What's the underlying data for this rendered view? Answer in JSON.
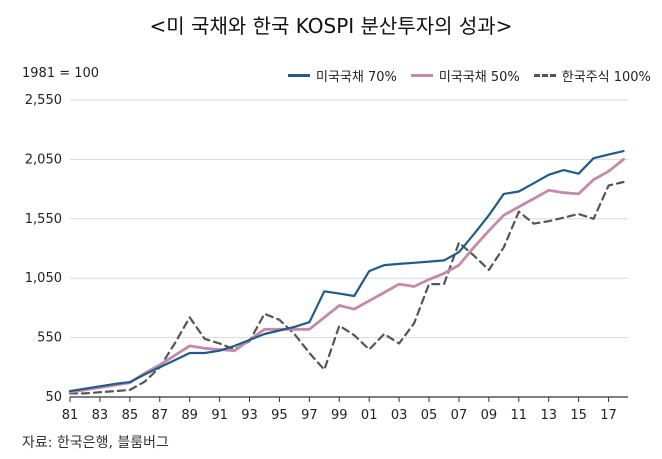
{
  "title": "<미 국채와 한국 KOSPI 분산투자의 성과>",
  "unit_note": "1981 = 100",
  "source": "자료: 한국은행, 블룸버그",
  "colors": {
    "us_70": "#1f5c8b",
    "us_50": "#c48aa8",
    "kr_100": "#555555",
    "axis": "#333333"
  },
  "chart_data": {
    "type": "line",
    "title": "<미 국채와 한국 KOSPI 분산투자의 성과>",
    "xlabel": "",
    "ylabel": "",
    "ylim": [
      50,
      2550
    ],
    "yticks": [
      50,
      550,
      1050,
      1550,
      2050,
      2550
    ],
    "ytick_labels": [
      "50",
      "550",
      "1,050",
      "1,550",
      "2,050",
      "2,550"
    ],
    "xticks": [
      "81",
      "83",
      "85",
      "87",
      "89",
      "91",
      "93",
      "95",
      "97",
      "99",
      "01",
      "03",
      "05",
      "07",
      "09",
      "11",
      "13",
      "15",
      "17"
    ],
    "grid": "horizontal",
    "legend": "top-right",
    "x": [
      1981,
      1982,
      1983,
      1984,
      1985,
      1986,
      1987,
      1988,
      1989,
      1990,
      1991,
      1992,
      1993,
      1994,
      1995,
      1996,
      1997,
      1998,
      1999,
      2000,
      2001,
      2002,
      2003,
      2004,
      2005,
      2006,
      2007,
      2008,
      2009,
      2010,
      2011,
      2012,
      2013,
      2014,
      2015,
      2016,
      2017,
      2018
    ],
    "series": [
      {
        "name": "미국국채 70%",
        "style": "solid",
        "values": [
          100,
          120,
          140,
          160,
          175,
          240,
          300,
          360,
          420,
          420,
          440,
          480,
          530,
          580,
          610,
          640,
          680,
          940,
          920,
          900,
          1110,
          1160,
          1170,
          1180,
          1190,
          1200,
          1270,
          1420,
          1580,
          1760,
          1780,
          1850,
          1920,
          1960,
          1930,
          2060,
          2090,
          2120
        ]
      },
      {
        "name": "미국국채 50%",
        "style": "solid",
        "values": [
          90,
          110,
          130,
          150,
          170,
          250,
          320,
          400,
          480,
          460,
          450,
          440,
          530,
          620,
          620,
          620,
          620,
          720,
          820,
          790,
          860,
          930,
          1000,
          980,
          1040,
          1090,
          1160,
          1310,
          1450,
          1580,
          1650,
          1720,
          1790,
          1770,
          1760,
          1880,
          1950,
          2050
        ]
      },
      {
        "name": "한국주식 100%",
        "style": "dashed",
        "values": [
          80,
          80,
          90,
          100,
          110,
          180,
          300,
          500,
          720,
          540,
          500,
          450,
          520,
          750,
          700,
          580,
          420,
          280,
          650,
          570,
          450,
          580,
          500,
          670,
          1000,
          1000,
          1350,
          1240,
          1120,
          1310,
          1610,
          1510,
          1530,
          1560,
          1590,
          1550,
          1830,
          1860
        ]
      }
    ]
  }
}
